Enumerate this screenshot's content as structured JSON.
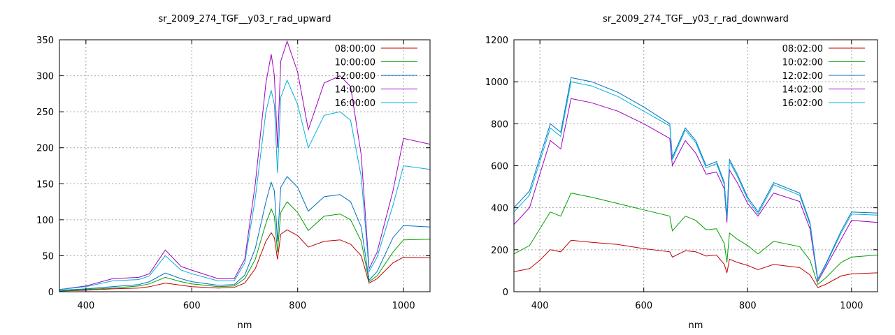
{
  "chart_data": [
    {
      "type": "line",
      "title": "sr_2009_274_TGF__y03_r_rad_upward",
      "xlabel": "nm",
      "ylabel": "",
      "xlim": [
        350,
        1050
      ],
      "ylim": [
        0,
        350
      ],
      "xticks": [
        400,
        600,
        800,
        1000
      ],
      "yticks": [
        0,
        50,
        100,
        150,
        200,
        250,
        300,
        350
      ],
      "grid": true,
      "legend": "top-right",
      "series": [
        {
          "name": "08:00:00",
          "color": "#c00000",
          "x": [
            350,
            400,
            450,
            500,
            520,
            550,
            580,
            600,
            650,
            680,
            700,
            720,
            740,
            750,
            756,
            762,
            768,
            780,
            800,
            820,
            850,
            880,
            900,
            920,
            935,
            950,
            980,
            1000,
            1050
          ],
          "y": [
            1,
            2,
            4,
            5,
            7,
            12,
            9,
            7,
            5,
            6,
            12,
            32,
            70,
            82,
            75,
            45,
            80,
            86,
            78,
            62,
            70,
            72,
            66,
            50,
            12,
            18,
            40,
            48,
            47
          ]
        },
        {
          "name": "10:00:00",
          "color": "#00a000",
          "x": [
            350,
            400,
            450,
            500,
            520,
            550,
            580,
            600,
            650,
            680,
            700,
            720,
            740,
            750,
            756,
            762,
            768,
            780,
            800,
            820,
            850,
            880,
            900,
            920,
            935,
            950,
            980,
            1000,
            1050
          ],
          "y": [
            1,
            3,
            5,
            8,
            11,
            20,
            14,
            11,
            7,
            8,
            18,
            45,
            95,
            115,
            105,
            55,
            110,
            125,
            110,
            85,
            105,
            108,
            100,
            70,
            14,
            22,
            55,
            72,
            73
          ]
        },
        {
          "name": "12:00:00",
          "color": "#0070c0",
          "x": [
            350,
            400,
            450,
            500,
            520,
            550,
            580,
            600,
            650,
            680,
            700,
            720,
            740,
            750,
            756,
            762,
            768,
            780,
            800,
            820,
            850,
            880,
            900,
            920,
            935,
            950,
            980,
            1000,
            1050
          ],
          "y": [
            2,
            4,
            7,
            10,
            14,
            26,
            18,
            14,
            9,
            10,
            23,
            60,
            125,
            152,
            140,
            70,
            145,
            160,
            145,
            112,
            132,
            135,
            125,
            90,
            16,
            28,
            75,
            92,
            90
          ]
        },
        {
          "name": "14:00:00",
          "color": "#a000c0",
          "x": [
            350,
            400,
            450,
            500,
            520,
            550,
            580,
            600,
            650,
            680,
            700,
            720,
            740,
            750,
            756,
            762,
            768,
            780,
            800,
            820,
            850,
            880,
            900,
            920,
            935,
            950,
            980,
            1000,
            1050
          ],
          "y": [
            3,
            8,
            18,
            20,
            25,
            58,
            35,
            30,
            18,
            18,
            45,
            150,
            290,
            330,
            300,
            200,
            320,
            348,
            305,
            225,
            290,
            300,
            285,
            190,
            32,
            55,
            140,
            213,
            205
          ]
        },
        {
          "name": "16:00:00",
          "color": "#00b0d8",
          "x": [
            350,
            400,
            450,
            500,
            520,
            550,
            580,
            600,
            650,
            680,
            700,
            720,
            740,
            750,
            756,
            762,
            768,
            780,
            800,
            820,
            850,
            880,
            900,
            920,
            935,
            950,
            980,
            1000,
            1050
          ],
          "y": [
            3,
            7,
            15,
            17,
            22,
            50,
            30,
            25,
            15,
            15,
            40,
            130,
            250,
            280,
            260,
            165,
            270,
            294,
            260,
            200,
            245,
            250,
            238,
            160,
            28,
            48,
            120,
            175,
            170
          ]
        }
      ]
    },
    {
      "type": "line",
      "title": "sr_2009_274_TGF__y03_r_rad_downward",
      "xlabel": "nm",
      "ylabel": "",
      "xlim": [
        350,
        1050
      ],
      "ylim": [
        0,
        1200
      ],
      "xticks": [
        400,
        600,
        800,
        1000
      ],
      "yticks": [
        0,
        200,
        400,
        600,
        800,
        1000,
        1200
      ],
      "grid": true,
      "legend": "top-right",
      "series": [
        {
          "name": "08:02:00",
          "color": "#c00000",
          "x": [
            350,
            380,
            400,
            420,
            440,
            460,
            500,
            550,
            600,
            650,
            655,
            680,
            700,
            720,
            740,
            755,
            760,
            765,
            780,
            800,
            820,
            850,
            900,
            920,
            935,
            950,
            980,
            1000,
            1050
          ],
          "y": [
            95,
            110,
            150,
            200,
            190,
            245,
            235,
            225,
            205,
            190,
            165,
            195,
            190,
            170,
            175,
            130,
            90,
            155,
            140,
            125,
            105,
            130,
            115,
            80,
            20,
            35,
            75,
            85,
            90
          ]
        },
        {
          "name": "10:02:00",
          "color": "#00a000",
          "x": [
            350,
            380,
            400,
            420,
            440,
            460,
            500,
            550,
            600,
            650,
            655,
            680,
            700,
            720,
            740,
            755,
            760,
            765,
            780,
            800,
            820,
            850,
            900,
            920,
            935,
            950,
            980,
            1000,
            1050
          ],
          "y": [
            180,
            220,
            300,
            380,
            360,
            470,
            450,
            420,
            390,
            360,
            290,
            360,
            340,
            295,
            300,
            230,
            140,
            280,
            250,
            220,
            180,
            240,
            215,
            150,
            35,
            65,
            140,
            165,
            175
          ]
        },
        {
          "name": "12:02:00",
          "color": "#0070c0",
          "x": [
            350,
            380,
            400,
            420,
            440,
            460,
            500,
            550,
            600,
            650,
            655,
            680,
            700,
            720,
            740,
            755,
            760,
            765,
            780,
            800,
            820,
            850,
            900,
            920,
            935,
            950,
            980,
            1000,
            1050
          ],
          "y": [
            400,
            480,
            640,
            800,
            760,
            1020,
            1000,
            950,
            880,
            800,
            640,
            780,
            720,
            600,
            620,
            520,
            360,
            630,
            560,
            450,
            380,
            520,
            470,
            330,
            60,
            130,
            290,
            380,
            375
          ]
        },
        {
          "name": "14:02:00",
          "color": "#a000c0",
          "x": [
            350,
            380,
            400,
            420,
            440,
            460,
            500,
            550,
            600,
            650,
            655,
            680,
            700,
            720,
            740,
            755,
            760,
            765,
            780,
            800,
            820,
            850,
            900,
            920,
            935,
            950,
            980,
            1000,
            1050
          ],
          "y": [
            320,
            400,
            560,
            720,
            680,
            920,
            900,
            860,
            800,
            730,
            600,
            720,
            660,
            560,
            570,
            490,
            330,
            580,
            520,
            420,
            360,
            470,
            430,
            300,
            50,
            115,
            250,
            340,
            330
          ]
        },
        {
          "name": "16:02:00",
          "color": "#00b0d8",
          "x": [
            350,
            380,
            400,
            420,
            440,
            460,
            500,
            550,
            600,
            650,
            655,
            680,
            700,
            720,
            740,
            755,
            760,
            765,
            780,
            800,
            820,
            850,
            900,
            920,
            935,
            950,
            980,
            1000,
            1050
          ],
          "y": [
            380,
            460,
            620,
            780,
            740,
            1000,
            980,
            930,
            860,
            790,
            630,
            770,
            710,
            590,
            610,
            510,
            350,
            620,
            550,
            440,
            370,
            510,
            460,
            320,
            58,
            125,
            280,
            370,
            365
          ]
        }
      ]
    }
  ]
}
